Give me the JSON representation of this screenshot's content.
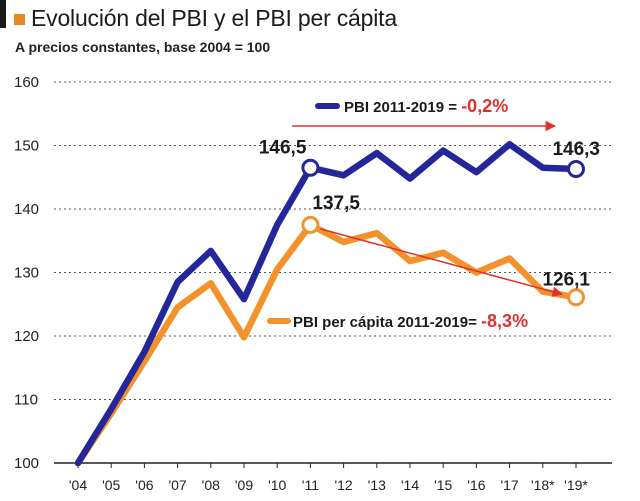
{
  "chart_data": {
    "type": "line",
    "title": "Evolución del PBI y el PBI per cápita",
    "subtitle": "A precios constantes, base 2004 = 100",
    "categories": [
      "'04",
      "'05",
      "'06",
      "'07",
      "'08",
      "'09",
      "'10",
      "'11",
      "'12",
      "'13",
      "'14",
      "'15",
      "'16",
      "'17",
      "'18*",
      "'19*"
    ],
    "series": [
      {
        "name": "PBI",
        "color": "#23279a",
        "values": [
          100,
          108.5,
          117.5,
          128.5,
          133.4,
          125.8,
          137.5,
          146.5,
          145.3,
          148.8,
          144.8,
          149.2,
          145.8,
          150.2,
          146.5,
          146.3
        ]
      },
      {
        "name": "PBI per cápita",
        "color": "#f3912a",
        "values": [
          100,
          107.8,
          116.0,
          124.5,
          128.3,
          119.8,
          130.5,
          137.5,
          134.8,
          136.2,
          131.8,
          133.1,
          130.0,
          132.2,
          127.0,
          126.1
        ]
      }
    ],
    "ylim": [
      100,
      160
    ],
    "yticks": [
      100,
      110,
      120,
      130,
      140,
      150,
      160
    ],
    "grid": true,
    "data_labels": [
      {
        "series": 0,
        "index": 7,
        "text": "146,5"
      },
      {
        "series": 0,
        "index": 15,
        "text": "146,3"
      },
      {
        "series": 1,
        "index": 7,
        "text": "137,5"
      },
      {
        "series": 1,
        "index": 15,
        "text": "126,1"
      }
    ],
    "annotations": [
      {
        "label": "PBI 2011-2019 = ",
        "value": "-0,2%",
        "marker_color": "#23279a"
      },
      {
        "label": "PBI per cápita 2011-2019= ",
        "value": "-8,3%",
        "marker_color": "#f3912a"
      }
    ],
    "annotation_color": "#e0312b"
  }
}
